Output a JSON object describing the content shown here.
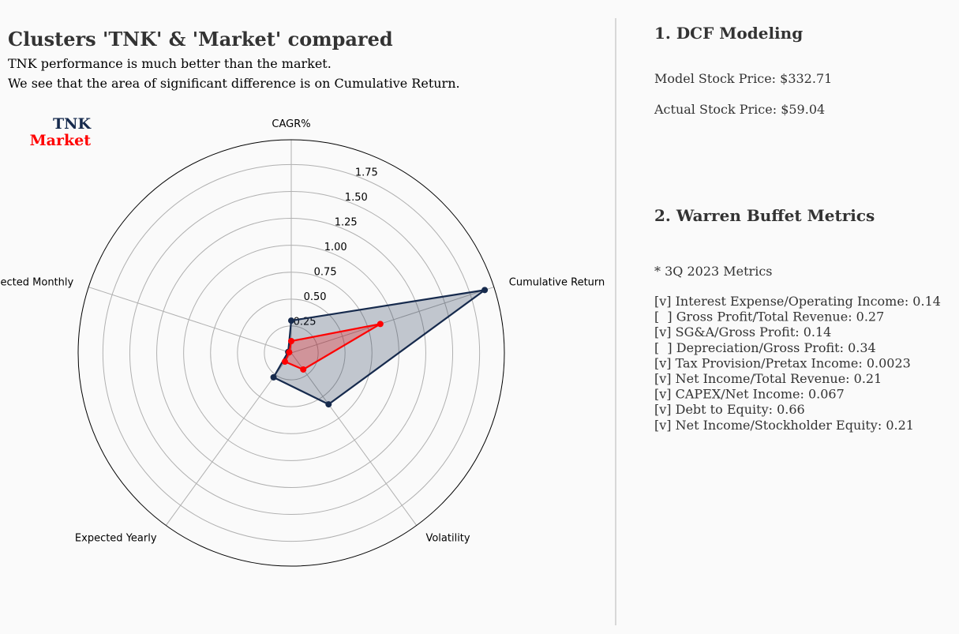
{
  "chart_data": {
    "type": "radar",
    "title": "Clusters 'TNK' & 'Market' compared",
    "subtitle": [
      "TNK performance is much better than the market.",
      "We see that the area of significant difference is on Cumulative Return."
    ],
    "categories": [
      "CAGR%",
      "Cumulative Return",
      "Volatility",
      "Expected Yearly",
      "Expected Monthly"
    ],
    "series": [
      {
        "name": "TNK",
        "color": "#162a4d",
        "values": [
          0.3,
          1.89,
          0.59,
          0.28,
          0.03
        ]
      },
      {
        "name": "Market",
        "color": "#ff0000",
        "values": [
          0.11,
          0.87,
          0.19,
          0.1,
          0.02
        ]
      }
    ],
    "ylim": [
      0,
      1.98
    ],
    "yticks": [
      {
        "value": 0.25,
        "label": "0.25"
      },
      {
        "value": 0.5,
        "label": "0.50"
      },
      {
        "value": 0.75,
        "label": "0.75"
      },
      {
        "value": 1.0,
        "label": "1.00"
      },
      {
        "value": 1.25,
        "label": "1.25"
      },
      {
        "value": 1.5,
        "label": "1.50"
      },
      {
        "value": 1.75,
        "label": "1.75"
      }
    ],
    "grid": true
  },
  "panel": {
    "dcf": {
      "title": "1. DCF Modeling",
      "lines": [
        "Model Stock Price: $332.71",
        "Actual Stock Price: $59.04"
      ]
    },
    "buffett": {
      "title": "2. Warren Buffet Metrics",
      "note": "* 3Q 2023 Metrics",
      "items": [
        "[v] Interest Expense/Operating Income: 0.14",
        "[  ] Gross Profit/Total Revenue: 0.27",
        "[v] SG&A/Gross Profit: 0.14",
        "[  ] Depreciation/Gross Profit: 0.34",
        "[v] Tax Provision/Pretax Income: 0.0023",
        "[v] Net Income/Total Revenue: 0.21",
        "[v] CAPEX/Net Income: 0.067",
        "[v] Debt to Equity: 0.66",
        "[v] Net Income/Stockholder Equity: 0.21"
      ]
    }
  }
}
